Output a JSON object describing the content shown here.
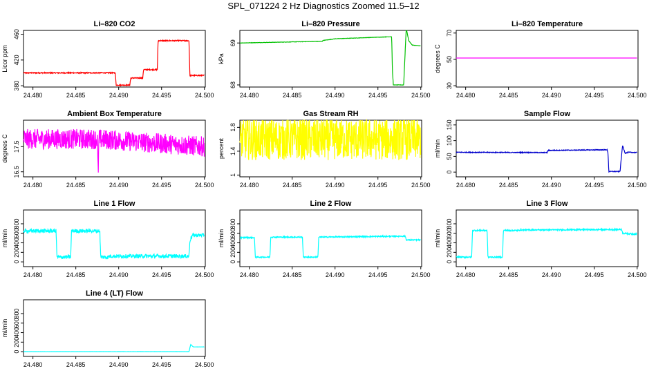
{
  "title": "SPL_071224  2 Hz Diagnostics Zoomed 11.5–12",
  "chart_data": [
    {
      "type": "line",
      "title": "Li–820 CO2",
      "ylabel": "Licor ppm",
      "color": "#ff0000",
      "xlim": [
        24.4789,
        24.5001
      ],
      "ylim": [
        378,
        466
      ],
      "xticks": [
        24.48,
        24.485,
        24.49,
        24.495,
        24.5
      ],
      "yticks": [
        380,
        420,
        460
      ],
      "series": [
        {
          "noise": 0.8,
          "x": [
            24.4789,
            24.4896,
            24.4897,
            24.4913,
            24.4914,
            24.4928,
            24.4929,
            24.4945,
            24.4946,
            24.4982,
            24.4983,
            24.5
          ],
          "y": [
            400,
            400,
            381,
            381,
            392,
            392,
            405,
            405,
            450,
            450,
            396,
            396
          ]
        }
      ]
    },
    {
      "type": "line",
      "title": "Li–820 Pressure",
      "ylabel": "kPa",
      "color": "#00c000",
      "xlim": [
        24.4789,
        24.5001
      ],
      "ylim": [
        67.95,
        69.3
      ],
      "xticks": [
        24.48,
        24.485,
        24.49,
        24.495,
        24.5
      ],
      "yticks": [
        68.0,
        69.0
      ],
      "series": [
        {
          "noise": 0.004,
          "x": [
            24.4789,
            24.4885,
            24.4886,
            24.49,
            24.4966,
            24.4967,
            24.4968,
            24.4969,
            24.497,
            24.4975,
            24.498,
            24.4983,
            24.4986,
            24.499,
            24.5
          ],
          "y": [
            69.0,
            69.04,
            69.06,
            69.1,
            69.15,
            68.3,
            68.0,
            68.0,
            68.0,
            68.0,
            68.0,
            69.35,
            69.05,
            68.95,
            68.93
          ]
        }
      ]
    },
    {
      "type": "line",
      "title": "Li–820 Temperature",
      "ylabel": "degrees C",
      "color": "#ff00ff",
      "xlim": [
        24.4789,
        24.5001
      ],
      "ylim": [
        29,
        72
      ],
      "xticks": [
        24.48,
        24.485,
        24.49,
        24.495,
        24.5
      ],
      "yticks": [
        30,
        50,
        70
      ],
      "series": [
        {
          "noise": 0,
          "x": [
            24.4789,
            24.5
          ],
          "y": [
            51,
            51
          ]
        }
      ]
    },
    {
      "type": "line",
      "title": "Ambient Box Temperature",
      "ylabel": "degrees C",
      "color": "#ff00ff",
      "xlim": [
        24.4789,
        24.5001
      ],
      "ylim": [
        16.3,
        18.55
      ],
      "xticks": [
        24.48,
        24.485,
        24.49,
        24.495,
        24.5
      ],
      "yticks": [
        16.5,
        17.5
      ],
      "series": [
        {
          "noise": 0.4,
          "x": [
            24.4789,
            24.4875,
            24.4876,
            24.4877,
            24.4878,
            24.5
          ],
          "y": [
            17.8,
            17.8,
            16.4,
            17.8,
            17.8,
            17.5
          ]
        }
      ]
    },
    {
      "type": "line",
      "title": "Gas Stream RH",
      "ylabel": "percent",
      "color": "#ffff00",
      "xlim": [
        24.4789,
        24.5001
      ],
      "ylim": [
        0.97,
        1.92
      ],
      "xticks": [
        24.48,
        24.485,
        24.49,
        24.495,
        24.5
      ],
      "yticks": [
        1.0,
        1.4,
        1.8
      ],
      "series": [
        {
          "noise": 0.35,
          "x": [
            24.4789,
            24.5
          ],
          "y": [
            1.6,
            1.6
          ]
        }
      ]
    },
    {
      "type": "line",
      "title": "Sample Flow",
      "ylabel": "ml/min",
      "color": "#0000cc",
      "xlim": [
        24.4789,
        24.5001
      ],
      "ylim": [
        -15,
        165
      ],
      "xticks": [
        24.48,
        24.485,
        24.49,
        24.495,
        24.5
      ],
      "yticks": [
        0,
        50,
        100,
        150
      ],
      "series": [
        {
          "noise": 1.2,
          "x": [
            24.4789,
            24.4895,
            24.4896,
            24.4965,
            24.4966,
            24.4967,
            24.498,
            24.4981,
            24.4983,
            24.4986,
            24.499,
            24.5
          ],
          "y": [
            63,
            62,
            69,
            71,
            60,
            2,
            2,
            30,
            85,
            60,
            63,
            62
          ]
        }
      ]
    },
    {
      "type": "line",
      "title": "Line 1 Flow",
      "ylabel": "ml/min",
      "color": "#00ffff",
      "xlim": [
        24.4789,
        24.5001
      ],
      "ylim": [
        -100,
        1090
      ],
      "xticks": [
        24.48,
        24.485,
        24.49,
        24.495,
        24.5
      ],
      "yticks": [
        0,
        200,
        400,
        600,
        800
      ],
      "series": [
        {
          "noise": 40,
          "x": [
            24.4789,
            24.4827,
            24.4828,
            24.4844,
            24.4845,
            24.4878,
            24.4879,
            24.4888,
            24.4889,
            24.4982,
            24.4983,
            24.4986,
            24.5
          ],
          "y": [
            650,
            650,
            100,
            100,
            650,
            650,
            100,
            100,
            120,
            120,
            450,
            560,
            560
          ]
        }
      ]
    },
    {
      "type": "line",
      "title": "Line 2 Flow",
      "ylabel": "ml/min",
      "color": "#00ffff",
      "xlim": [
        24.4789,
        24.5001
      ],
      "ylim": [
        -100,
        1090
      ],
      "xticks": [
        24.48,
        24.485,
        24.49,
        24.495,
        24.5
      ],
      "yticks": [
        0,
        200,
        400,
        600,
        800
      ],
      "series": [
        {
          "noise": 12,
          "x": [
            24.4789,
            24.4806,
            24.4807,
            24.4824,
            24.4825,
            24.4862,
            24.4863,
            24.488,
            24.4881,
            24.4982,
            24.4983,
            24.5
          ],
          "y": [
            510,
            510,
            100,
            100,
            520,
            520,
            100,
            100,
            520,
            540,
            460,
            460
          ]
        }
      ]
    },
    {
      "type": "line",
      "title": "Line 3 Flow",
      "ylabel": "ml/min",
      "color": "#00ffff",
      "xlim": [
        24.4789,
        24.5001
      ],
      "ylim": [
        -100,
        1090
      ],
      "xticks": [
        24.48,
        24.485,
        24.49,
        24.495,
        24.5
      ],
      "yticks": [
        0,
        200,
        400,
        600,
        800
      ],
      "series": [
        {
          "noise": 14,
          "x": [
            24.4789,
            24.4807,
            24.4808,
            24.4825,
            24.4826,
            24.4843,
            24.4844,
            24.4862,
            24.4863,
            24.4982,
            24.4983,
            24.5
          ],
          "y": [
            100,
            100,
            660,
            660,
            100,
            100,
            660,
            660,
            670,
            680,
            600,
            580
          ]
        }
      ]
    },
    {
      "type": "line",
      "title": "Line 4 (LT) Flow",
      "ylabel": "ml/min",
      "color": "#00ffff",
      "xlim": [
        24.4789,
        24.5001
      ],
      "ylim": [
        -100,
        1090
      ],
      "xticks": [
        24.48,
        24.485,
        24.49,
        24.495,
        24.5
      ],
      "yticks": [
        0,
        200,
        400,
        600,
        800
      ],
      "series": [
        {
          "noise": 2,
          "x": [
            24.4789,
            24.4982,
            24.4983,
            24.4984,
            24.4987,
            24.5
          ],
          "y": [
            0,
            0,
            80,
            150,
            100,
            100
          ]
        }
      ]
    }
  ]
}
